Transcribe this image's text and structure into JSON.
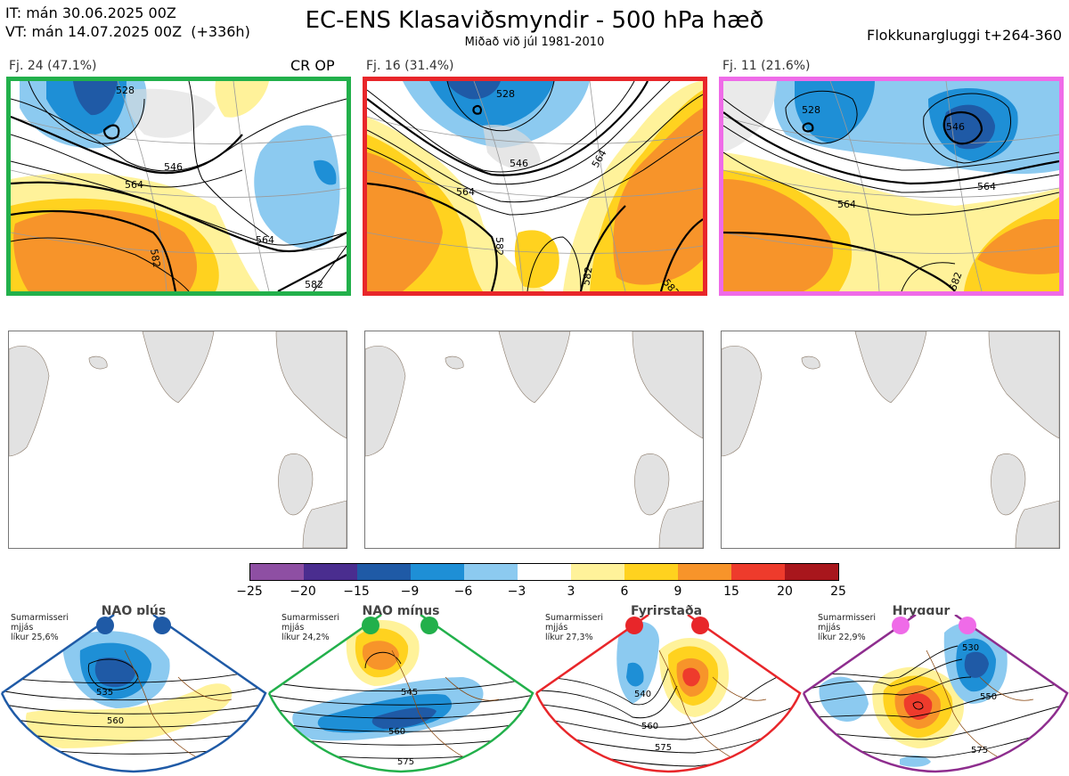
{
  "header": {
    "init_time": "IT: mán 30.06.2025 00Z",
    "valid_time": "VT: mán 14.07.2025 00Z  (+336h)",
    "title": "EC-ENS Klasaviðsmyndir - 500 hPa hæð",
    "subtitle": "Miðað við júl 1981-2010",
    "window": "Flokkunargluggi t+264-360"
  },
  "clusters": [
    {
      "label": "Fj. 24 (47.1%)",
      "badge": "CR OP",
      "border_color": "#22b04b",
      "contours": [
        "528",
        "546",
        "564",
        "564",
        "582",
        "582"
      ]
    },
    {
      "label": "Fj. 16 (31.4%)",
      "badge": "",
      "border_color": "#e8262a",
      "contours": [
        "528",
        "546",
        "564",
        "564",
        "582",
        "582",
        "582"
      ]
    },
    {
      "label": "Fj. 11 (21.6%)",
      "badge": "",
      "border_color": "#ef6be8",
      "contours": [
        "528",
        "546",
        "564",
        "564",
        "582"
      ]
    }
  ],
  "colorbar": {
    "colors": [
      "#8e4fa3",
      "#4a2d8f",
      "#1f5aa6",
      "#1e8fd6",
      "#8ccaf0",
      "#ffffff",
      "#fff29a",
      "#ffd21f",
      "#f7942a",
      "#ee3b2c",
      "#a8161c"
    ],
    "ticks": [
      "−25",
      "−20",
      "−15",
      "−9",
      "−6",
      "−3",
      "3",
      "6",
      "9",
      "15",
      "20",
      "25"
    ]
  },
  "regimes": [
    {
      "name": "NAO plús",
      "season": "Sumarmisseri",
      "method": "mjjás",
      "probability": "líkur 25,6%",
      "color": "#1f5aa6",
      "contours": [
        "535",
        "560"
      ]
    },
    {
      "name": "NAO mínus",
      "season": "Sumarmisseri",
      "method": "mjjás",
      "probability": "líkur 24,2%",
      "color": "#22b04b",
      "contours": [
        "545",
        "560",
        "575"
      ]
    },
    {
      "name": "Fyrirstaða",
      "season": "Sumarmisseri",
      "method": "mjjás",
      "probability": "líkur 27,3%",
      "color": "#e8262a",
      "contours": [
        "540",
        "560",
        "575"
      ]
    },
    {
      "name": "Hryggur",
      "season": "Sumarmisseri",
      "method": "mjjás",
      "probability": "líkur 22,9%",
      "color": "#ef6be8",
      "contours": [
        "530",
        "550",
        "575"
      ]
    }
  ]
}
